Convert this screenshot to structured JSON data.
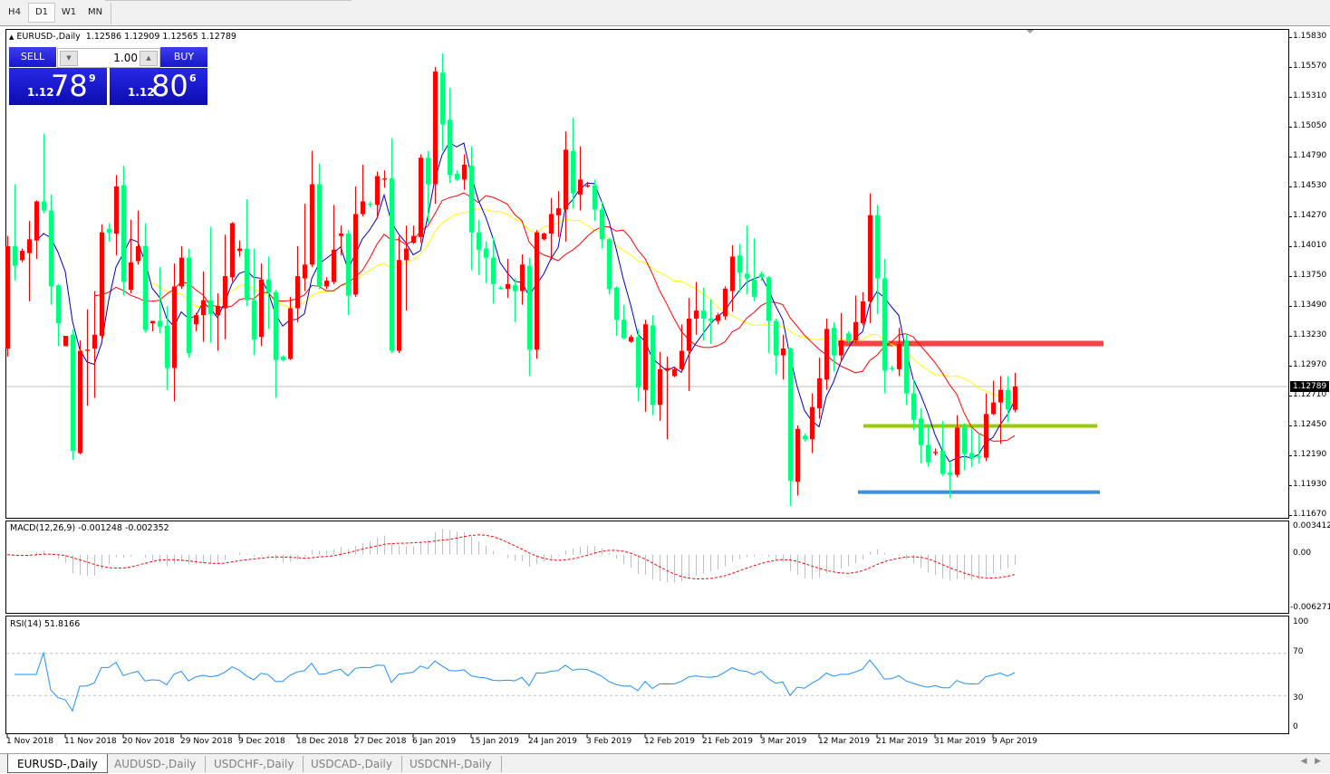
{
  "toolbar": {
    "timeframes": [
      "H4",
      "D1",
      "W1",
      "MN"
    ],
    "active": "D1"
  },
  "chart_header": {
    "symbol_label": "EURUSD-,Daily",
    "ohlc": "1.12586 1.12909 1.12565 1.12789"
  },
  "one_click_trading": {
    "sell_label": "SELL",
    "buy_label": "BUY",
    "lot": "1.00",
    "sell_price": {
      "prefix": "1.12",
      "big": "78",
      "sup": "9"
    },
    "buy_price": {
      "prefix": "1.12",
      "big": "80",
      "sup": "6"
    }
  },
  "price_axis": {
    "ticks": [
      "1.15830",
      "1.15570",
      "1.15310",
      "1.15050",
      "1.14790",
      "1.14530",
      "1.14270",
      "1.14010",
      "1.13750",
      "1.13490",
      "1.13230",
      "1.12970",
      "1.12710",
      "1.12450",
      "1.12190",
      "1.11930",
      "1.11670"
    ],
    "bid": "1.12789"
  },
  "macd": {
    "label": "MACD(12,26,9) -0.001248 -0.002352",
    "ticks": [
      "0.003412",
      "0.00",
      "-0.006271"
    ]
  },
  "rsi": {
    "label": "RSI(14) 51.8166",
    "ticks": [
      "100",
      "70",
      "30",
      "0"
    ],
    "levels": [
      70,
      30
    ]
  },
  "date_axis": [
    "1 Nov 2018",
    "11 Nov 2018",
    "20 Nov 2018",
    "29 Nov 2018",
    "9 Dec 2018",
    "18 Dec 2018",
    "27 Dec 2018",
    "6 Jan 2019",
    "15 Jan 2019",
    "24 Jan 2019",
    "3 Feb 2019",
    "12 Feb 2019",
    "21 Feb 2019",
    "3 Mar 2019",
    "12 Mar 2019",
    "21 Mar 2019",
    "31 Mar 2019",
    "9 Apr 2019"
  ],
  "colors": {
    "bull": "#ff0000",
    "bear": "#00ff7f",
    "ma_fast": "#0000c8",
    "ma_mid": "#ff0000",
    "ma_slow": "#ffff00",
    "macd_hist": "#c0c0c0",
    "macd_signal": "#ff0000",
    "rsi": "#1e90ff"
  },
  "levels": [
    {
      "price": 1.13167,
      "color": "#f44444"
    },
    {
      "price": 1.12442,
      "color": "#99cc00"
    },
    {
      "price": 1.11866,
      "color": "#3a8fe0"
    }
  ],
  "tabs": [
    "EURUSD-,Daily",
    "AUDUSD-,Daily",
    "USDCHF-,Daily",
    "USDCAD-,Daily",
    "USDCNH-,Daily"
  ],
  "active_tab": "EURUSD-,Daily",
  "chart_data": {
    "type": "candlestick",
    "ylim": [
      1.1167,
      1.1583
    ],
    "fields": [
      "open",
      "high",
      "low",
      "close"
    ],
    "candles": [
      [
        1.1312,
        1.141,
        1.1305,
        1.1401
      ],
      [
        1.1401,
        1.1455,
        1.1371,
        1.1384
      ],
      [
        1.1389,
        1.1399,
        1.1387,
        1.1397
      ],
      [
        1.1395,
        1.1423,
        1.1353,
        1.1407
      ],
      [
        1.1406,
        1.1441,
        1.139,
        1.144
      ],
      [
        1.144,
        1.1499,
        1.143,
        1.1432
      ],
      [
        1.1432,
        1.1446,
        1.135,
        1.1366
      ],
      [
        1.1367,
        1.1368,
        1.1314,
        1.1334
      ],
      [
        1.1314,
        1.1323,
        1.1314,
        1.1323
      ],
      [
        1.1324,
        1.1329,
        1.1215,
        1.1223
      ],
      [
        1.1221,
        1.1319,
        1.122,
        1.131
      ],
      [
        1.131,
        1.1346,
        1.1262,
        1.1311
      ],
      [
        1.1312,
        1.1362,
        1.1269,
        1.1324
      ],
      [
        1.1323,
        1.142,
        1.132,
        1.1413
      ],
      [
        1.1416,
        1.1421,
        1.1405,
        1.1413
      ],
      [
        1.1412,
        1.1463,
        1.1393,
        1.1453
      ],
      [
        1.1454,
        1.1471,
        1.1358,
        1.137
      ],
      [
        1.1363,
        1.1424,
        1.136,
        1.1387
      ],
      [
        1.1388,
        1.1432,
        1.1385,
        1.1401
      ],
      [
        1.1401,
        1.1421,
        1.1326,
        1.1328
      ],
      [
        1.1334,
        1.1336,
        1.1327,
        1.1336
      ],
      [
        1.1336,
        1.1383,
        1.1325,
        1.1331
      ],
      [
        1.1332,
        1.1349,
        1.1276,
        1.1295
      ],
      [
        1.1295,
        1.1386,
        1.1266,
        1.1366
      ],
      [
        1.1366,
        1.1401,
        1.1364,
        1.1391
      ],
      [
        1.1391,
        1.1399,
        1.1304,
        1.1308
      ],
      [
        1.1333,
        1.1343,
        1.1327,
        1.1341
      ],
      [
        1.1341,
        1.1379,
        1.1318,
        1.1354
      ],
      [
        1.1354,
        1.1418,
        1.1317,
        1.1342
      ],
      [
        1.1341,
        1.136,
        1.131,
        1.1349
      ],
      [
        1.1347,
        1.1411,
        1.132,
        1.1375
      ],
      [
        1.1374,
        1.1422,
        1.137,
        1.1421
      ],
      [
        1.1397,
        1.1406,
        1.1392,
        1.1399
      ],
      [
        1.1399,
        1.1442,
        1.1349,
        1.1354
      ],
      [
        1.1354,
        1.1399,
        1.1306,
        1.132
      ],
      [
        1.1322,
        1.1386,
        1.1314,
        1.1372
      ],
      [
        1.1372,
        1.1392,
        1.1329,
        1.1361
      ],
      [
        1.1361,
        1.1363,
        1.1269,
        1.1302
      ],
      [
        1.1305,
        1.1306,
        1.1301,
        1.1302
      ],
      [
        1.1303,
        1.1357,
        1.1302,
        1.1347
      ],
      [
        1.1347,
        1.1401,
        1.1335,
        1.1375
      ],
      [
        1.1373,
        1.1438,
        1.1362,
        1.1385
      ],
      [
        1.1385,
        1.1484,
        1.1383,
        1.1455
      ],
      [
        1.1455,
        1.1473,
        1.1364,
        1.1366
      ],
      [
        1.1366,
        1.1374,
        1.1364,
        1.1371
      ],
      [
        1.137,
        1.1437,
        1.1368,
        1.1398
      ],
      [
        1.141,
        1.1419,
        1.1393,
        1.1412
      ],
      [
        1.1412,
        1.1415,
        1.1341,
        1.1358
      ],
      [
        1.1359,
        1.1453,
        1.1357,
        1.1429
      ],
      [
        1.1429,
        1.1472,
        1.1427,
        1.144
      ],
      [
        1.1438,
        1.144,
        1.1435,
        1.1437
      ],
      [
        1.1437,
        1.1466,
        1.1425,
        1.1462
      ],
      [
        1.1459,
        1.1467,
        1.1452,
        1.146
      ],
      [
        1.146,
        1.1495,
        1.1308,
        1.131
      ],
      [
        1.131,
        1.141,
        1.1308,
        1.1389
      ],
      [
        1.1389,
        1.1419,
        1.1345,
        1.1399
      ],
      [
        1.1404,
        1.1419,
        1.1403,
        1.141
      ],
      [
        1.1409,
        1.1481,
        1.1404,
        1.1478
      ],
      [
        1.1478,
        1.1484,
        1.1421,
        1.1455
      ],
      [
        1.1455,
        1.1557,
        1.1438,
        1.1553
      ],
      [
        1.1552,
        1.1569,
        1.1484,
        1.1507
      ],
      [
        1.1511,
        1.1539,
        1.1456,
        1.1463
      ],
      [
        1.1464,
        1.1467,
        1.1458,
        1.1459
      ],
      [
        1.1459,
        1.1481,
        1.145,
        1.1472
      ],
      [
        1.1471,
        1.1488,
        1.138,
        1.1413
      ],
      [
        1.1413,
        1.1424,
        1.1376,
        1.1398
      ],
      [
        1.1399,
        1.1405,
        1.1369,
        1.1391
      ],
      [
        1.1391,
        1.1409,
        1.1351,
        1.1368
      ],
      [
        1.1365,
        1.1366,
        1.1363,
        1.1364
      ],
      [
        1.1364,
        1.139,
        1.1356,
        1.1368
      ],
      [
        1.1367,
        1.1373,
        1.1335,
        1.1362
      ],
      [
        1.1362,
        1.1394,
        1.135,
        1.1385
      ],
      [
        1.1384,
        1.1391,
        1.1288,
        1.1311
      ],
      [
        1.1311,
        1.1415,
        1.1303,
        1.1413
      ],
      [
        1.1407,
        1.1413,
        1.1406,
        1.1412
      ],
      [
        1.1412,
        1.1443,
        1.1389,
        1.1429
      ],
      [
        1.1428,
        1.1449,
        1.1409,
        1.1434
      ],
      [
        1.1433,
        1.1501,
        1.1405,
        1.1485
      ],
      [
        1.1484,
        1.1513,
        1.1434,
        1.1447
      ],
      [
        1.1446,
        1.1488,
        1.1432,
        1.1459
      ],
      [
        1.1453,
        1.1457,
        1.1452,
        1.1454
      ],
      [
        1.1454,
        1.1459,
        1.1423,
        1.1433
      ],
      [
        1.1433,
        1.144,
        1.1399,
        1.1407
      ],
      [
        1.1407,
        1.1408,
        1.1359,
        1.1364
      ],
      [
        1.1365,
        1.1366,
        1.1323,
        1.1337
      ],
      [
        1.1337,
        1.135,
        1.132,
        1.1321
      ],
      [
        1.1318,
        1.1324,
        1.1317,
        1.1322
      ],
      [
        1.1322,
        1.1329,
        1.1266,
        1.1278
      ],
      [
        1.1276,
        1.1337,
        1.1257,
        1.1333
      ],
      [
        1.1332,
        1.1341,
        1.1254,
        1.1263
      ],
      [
        1.1263,
        1.1309,
        1.1249,
        1.1294
      ],
      [
        1.1293,
        1.1305,
        1.1233,
        1.1295
      ],
      [
        1.1288,
        1.1296,
        1.1287,
        1.1294
      ],
      [
        1.1294,
        1.1333,
        1.1292,
        1.131
      ],
      [
        1.131,
        1.1356,
        1.1275,
        1.1338
      ],
      [
        1.1338,
        1.137,
        1.1324,
        1.1345
      ],
      [
        1.1345,
        1.1365,
        1.1319,
        1.1338
      ],
      [
        1.1338,
        1.1355,
        1.1316,
        1.1336
      ],
      [
        1.1336,
        1.1343,
        1.1333,
        1.1341
      ],
      [
        1.134,
        1.1366,
        1.1337,
        1.1364
      ],
      [
        1.1362,
        1.1402,
        1.1344,
        1.1392
      ],
      [
        1.1393,
        1.1403,
        1.1361,
        1.1378
      ],
      [
        1.1377,
        1.1419,
        1.1359,
        1.1373
      ],
      [
        1.1372,
        1.1408,
        1.1353,
        1.1357
      ],
      [
        1.1377,
        1.1379,
        1.1371,
        1.1374
      ],
      [
        1.1374,
        1.1375,
        1.1308,
        1.1336
      ],
      [
        1.1336,
        1.1338,
        1.1289,
        1.1306
      ],
      [
        1.1306,
        1.1324,
        1.1285,
        1.1312
      ],
      [
        1.1312,
        1.1313,
        1.1175,
        1.1197
      ],
      [
        1.1196,
        1.1245,
        1.1184,
        1.1242
      ],
      [
        1.1236,
        1.1238,
        1.1231,
        1.1233
      ],
      [
        1.1233,
        1.1273,
        1.1221,
        1.1261
      ],
      [
        1.126,
        1.1304,
        1.1251,
        1.1286
      ],
      [
        1.1285,
        1.1338,
        1.1276,
        1.1329
      ],
      [
        1.133,
        1.1335,
        1.1292,
        1.1306
      ],
      [
        1.1306,
        1.1343,
        1.1301,
        1.1319
      ],
      [
        1.1325,
        1.1327,
        1.1317,
        1.1319
      ],
      [
        1.1319,
        1.1358,
        1.1317,
        1.1335
      ],
      [
        1.1334,
        1.1361,
        1.1332,
        1.1353
      ],
      [
        1.1353,
        1.1447,
        1.1334,
        1.1428
      ],
      [
        1.1428,
        1.1437,
        1.1342,
        1.1373
      ],
      [
        1.1373,
        1.139,
        1.1273,
        1.1293
      ],
      [
        1.1295,
        1.1297,
        1.1292,
        1.1294
      ],
      [
        1.1294,
        1.133,
        1.1288,
        1.1316
      ],
      [
        1.1319,
        1.1325,
        1.1263,
        1.1273
      ],
      [
        1.1273,
        1.1285,
        1.1241,
        1.125
      ],
      [
        1.1251,
        1.126,
        1.1212,
        1.1228
      ],
      [
        1.1228,
        1.1246,
        1.1209,
        1.1213
      ],
      [
        1.1221,
        1.1225,
        1.1219,
        1.1222
      ],
      [
        1.1223,
        1.1249,
        1.1201,
        1.1203
      ],
      [
        1.1204,
        1.1214,
        1.1182,
        1.1202
      ],
      [
        1.1202,
        1.1254,
        1.12,
        1.1243
      ],
      [
        1.1243,
        1.1247,
        1.1206,
        1.122
      ],
      [
        1.1221,
        1.1243,
        1.1209,
        1.1216
      ],
      [
        1.1218,
        1.1237,
        1.1212,
        1.1217
      ],
      [
        1.1217,
        1.1273,
        1.1214,
        1.1255
      ],
      [
        1.1255,
        1.1284,
        1.1254,
        1.1265
      ],
      [
        1.1265,
        1.1288,
        1.1229,
        1.1276
      ],
      [
        1.1276,
        1.1288,
        1.1248,
        1.1259
      ],
      [
        1.12586,
        1.12909,
        1.12565,
        1.12789
      ]
    ]
  }
}
